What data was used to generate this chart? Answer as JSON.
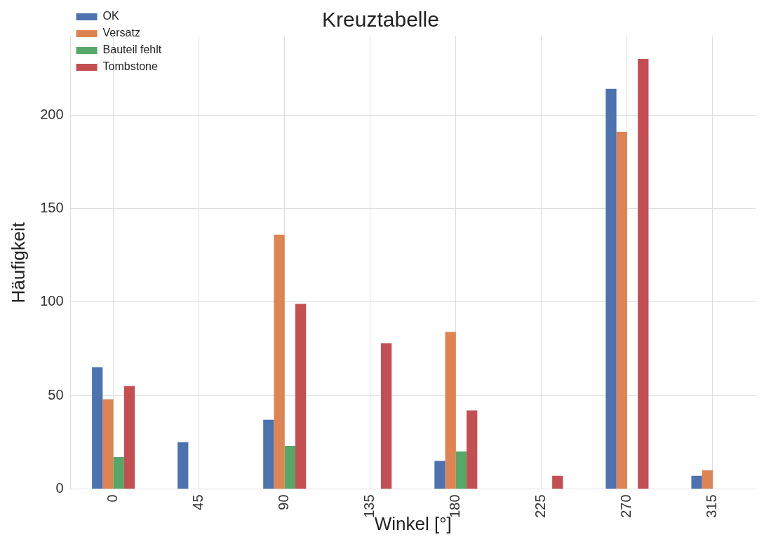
{
  "chart_data": {
    "type": "bar",
    "title": "Kreuztabelle",
    "xlabel": "Winkel [°]",
    "ylabel": "Häufigkeit",
    "categories": [
      "0",
      "45",
      "90",
      "135",
      "180",
      "225",
      "270",
      "315"
    ],
    "series": [
      {
        "name": "OK",
        "color": "#4c72b0",
        "values": [
          65,
          25,
          37,
          0,
          15,
          0,
          214,
          7
        ]
      },
      {
        "name": "Versatz",
        "color": "#dd8452",
        "values": [
          48,
          0,
          136,
          0,
          84,
          0,
          191,
          10
        ]
      },
      {
        "name": "Bauteil fehlt",
        "color": "#55a868",
        "values": [
          17,
          0,
          23,
          0,
          20,
          0,
          0,
          0
        ]
      },
      {
        "name": "Tombstone",
        "color": "#c44e52",
        "values": [
          55,
          0,
          99,
          78,
          42,
          7,
          230,
          0
        ]
      }
    ],
    "ylim": [
      0,
      242
    ],
    "yticks": [
      0,
      50,
      100,
      150,
      200
    ],
    "grid": true,
    "legend": "top left"
  }
}
